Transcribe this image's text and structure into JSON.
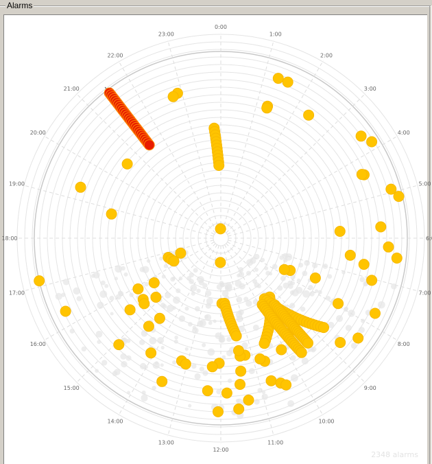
{
  "panel": {
    "title": "Alarms"
  },
  "summary": {
    "count_text": "2348 alarms"
  },
  "colors": {
    "alarm": "#ffc400",
    "alarm_edge": "#f7b800",
    "selected": "#e81c00",
    "selected_edge": "#ff8800",
    "grid": "#e4e4e4",
    "ring_outer": "#c8c8c8",
    "ghost": "#e6e6e6"
  },
  "chart_data": {
    "type": "scatter",
    "coordinate_system": "polar-24h",
    "angular_labels": [
      "0:00",
      "1:00",
      "2:00",
      "3:00",
      "4:00",
      "5:00",
      "6:00",
      "7:00",
      "8:00",
      "9:00",
      "10:00",
      "11:00",
      "12:00",
      "13:00",
      "14:00",
      "15:00",
      "16:00",
      "17:00",
      "18:00",
      "19:00",
      "20:00",
      "21:00",
      "22:00",
      "23:00"
    ],
    "radial_range": [
      0,
      100
    ],
    "grid": true,
    "series": [
      {
        "role": "alarms",
        "points": [
          {
            "t": 1.32,
            "r": 91
          },
          {
            "t": 1.55,
            "r": 91
          },
          {
            "t": 1.3,
            "r": 75
          },
          {
            "t": 1.3,
            "r": 74
          },
          {
            "t": 2.37,
            "r": 81
          },
          {
            "t": 3.6,
            "r": 93
          },
          {
            "t": 3.83,
            "r": 96
          },
          {
            "t": 4.41,
            "r": 84
          },
          {
            "t": 4.38,
            "r": 83
          },
          {
            "t": 5.78,
            "r": 64
          },
          {
            "t": 4.93,
            "r": 95
          },
          {
            "t": 5.12,
            "r": 98
          },
          {
            "t": 5.73,
            "r": 86
          },
          {
            "t": 6.2,
            "r": 90
          },
          {
            "t": 6.43,
            "r": 95
          },
          {
            "t": 6.5,
            "r": 70
          },
          {
            "t": 6.69,
            "r": 78
          },
          {
            "t": 7.52,
            "r": 55
          },
          {
            "t": 7.04,
            "r": 84
          },
          {
            "t": 7.94,
            "r": 72
          },
          {
            "t": 7.73,
            "r": 92
          },
          {
            "t": 8.4,
            "r": 91
          },
          {
            "t": 8.74,
            "r": 85
          },
          {
            "t": 7.66,
            "r": 41
          },
          {
            "t": 7.75,
            "r": 38
          },
          {
            "t": 11.6,
            "r": 92
          },
          {
            "t": 11.35,
            "r": 88
          },
          {
            "t": 11.5,
            "r": 79
          },
          {
            "t": 11.43,
            "r": 72
          },
          {
            "t": 11.22,
            "r": 64
          },
          {
            "t": 10.69,
            "r": 70
          },
          {
            "t": 10.8,
            "r": 68
          },
          {
            "t": 10.1,
            "r": 68
          },
          {
            "t": 9.35,
            "r": 58
          },
          {
            "t": 9.42,
            "r": 62
          },
          {
            "t": 9.7,
            "r": 64
          },
          {
            "t": 10.7,
            "r": 81
          },
          {
            "t": 10.5,
            "r": 84
          },
          {
            "t": 10.4,
            "r": 86
          },
          {
            "t": 11.38,
            "r": 64
          },
          {
            "t": 11.4,
            "r": 61
          },
          {
            "t": 11.85,
            "r": 83
          },
          {
            "t": 11.93,
            "r": 35
          },
          {
            "t": 12.05,
            "r": 67
          },
          {
            "t": 12.25,
            "r": 69
          },
          {
            "t": 12.06,
            "r": 93
          },
          {
            "t": 12.33,
            "r": 82
          },
          {
            "t": 13.49,
            "r": 83
          },
          {
            "t": 13.18,
            "r": 69
          },
          {
            "t": 13.04,
            "r": 70
          },
          {
            "t": 14.09,
            "r": 72
          },
          {
            "t": 14.92,
            "r": 79
          },
          {
            "t": 14.62,
            "r": 61
          },
          {
            "t": 14.49,
            "r": 54
          },
          {
            "t": 16.32,
            "r": 92
          },
          {
            "t": 15.45,
            "r": 62
          },
          {
            "t": 15.45,
            "r": 53
          },
          {
            "t": 15.3,
            "r": 54
          },
          {
            "t": 15.9,
            "r": 52
          },
          {
            "t": 15.18,
            "r": 47
          },
          {
            "t": 15.75,
            "r": 43
          },
          {
            "t": 16.66,
            "r": 30
          },
          {
            "t": 16.46,
            "r": 29
          },
          {
            "t": 16.27,
            "r": 28
          },
          {
            "t": 16.64,
            "r": 23
          },
          {
            "t": 17.12,
            "r": 100
          },
          {
            "t": 18.83,
            "r": 60
          },
          {
            "t": 19.33,
            "r": 80
          },
          {
            "t": 22.89,
            "r": 81
          },
          {
            "t": 22.76,
            "r": 80
          },
          {
            "t": 20.56,
            "r": 64
          },
          {
            "t": 12.06,
            "r": 13
          },
          {
            "t": 23.9,
            "r": 5
          }
        ],
        "clusters": [
          {
            "t_start": 23.77,
            "t_end": 23.9,
            "r_start": 59,
            "r_end": 39,
            "count": 12
          },
          {
            "t_start": 11.78,
            "t_end": 11.4,
            "r_start": 35,
            "r_end": 53,
            "count": 14
          },
          {
            "t_start": 9.35,
            "t_end": 10.5,
            "r_start": 41,
            "r_end": 61,
            "count": 16
          },
          {
            "t_start": 9.61,
            "t_end": 8.73,
            "r_start": 40,
            "r_end": 73,
            "count": 24
          },
          {
            "t_start": 9.4,
            "t_end": 9.35,
            "r_start": 46,
            "r_end": 73,
            "count": 24
          },
          {
            "t_start": 9.87,
            "t_end": 9.65,
            "r_start": 42,
            "r_end": 75,
            "count": 26
          }
        ]
      },
      {
        "role": "selected",
        "cluster": {
          "t_start": 21.5,
          "t_end": 21.5,
          "r_start": 98,
          "r_end": 63,
          "count": 28
        }
      }
    ]
  }
}
